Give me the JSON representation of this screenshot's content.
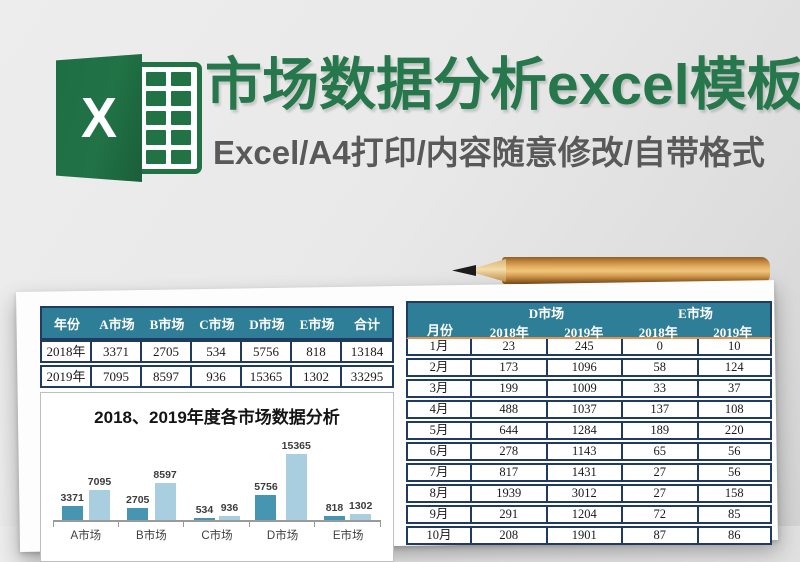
{
  "banner": {
    "title": "市场数据分析excel模板",
    "subtitle": "Excel/A4打印/内容随意修改/自带格式",
    "logo_letter": "X"
  },
  "summary_table": {
    "columns": [
      "年份",
      "A市场",
      "B市场",
      "C市场",
      "D市场",
      "E市场",
      "合计"
    ],
    "rows": [
      [
        "2018年",
        "3371",
        "2705",
        "534",
        "5756",
        "818",
        "13184"
      ],
      [
        "2019年",
        "7095",
        "8597",
        "936",
        "15365",
        "1302",
        "33295"
      ]
    ]
  },
  "chart_data": {
    "type": "bar",
    "title": "2018、2019年度各市场数据分析",
    "categories": [
      "A市场",
      "B市场",
      "C市场",
      "D市场",
      "E市场"
    ],
    "series": [
      {
        "name": "2018年",
        "color": "#4796B1",
        "values": [
          3371,
          2705,
          534,
          5756,
          818
        ]
      },
      {
        "name": "2019年",
        "color": "#A9CEE0",
        "values": [
          7095,
          8597,
          936,
          15365,
          1302
        ]
      }
    ],
    "ylim": [
      0,
      16000
    ],
    "data_labels": true,
    "grid": false,
    "legend_position": "hidden"
  },
  "monthly_table": {
    "corner_label": "月份",
    "groups": [
      {
        "label": "D市场"
      },
      {
        "label": "E市场"
      }
    ],
    "sub_columns": [
      "2018年",
      "2019年",
      "2018年",
      "2019年"
    ],
    "rows": [
      [
        "1月",
        "23",
        "245",
        "0",
        "10"
      ],
      [
        "2月",
        "173",
        "1096",
        "58",
        "124"
      ],
      [
        "3月",
        "199",
        "1009",
        "33",
        "37"
      ],
      [
        "4月",
        "488",
        "1037",
        "137",
        "108"
      ],
      [
        "5月",
        "644",
        "1284",
        "189",
        "220"
      ],
      [
        "6月",
        "278",
        "1143",
        "65",
        "56"
      ],
      [
        "7月",
        "817",
        "1431",
        "27",
        "56"
      ],
      [
        "8月",
        "1939",
        "3012",
        "27",
        "158"
      ],
      [
        "9月",
        "291",
        "1204",
        "72",
        "85"
      ],
      [
        "10月",
        "208",
        "1901",
        "87",
        "86"
      ]
    ]
  },
  "colors": {
    "excel_green": "#217346",
    "title_green": "#26784C",
    "subtitle_gray": "#595959",
    "header_teal": "#2F7E97",
    "border_navy": "#203A60",
    "accent_orange": "#DF9350",
    "bar_2018": "#4796B1",
    "bar_2019": "#A9CEE0"
  }
}
